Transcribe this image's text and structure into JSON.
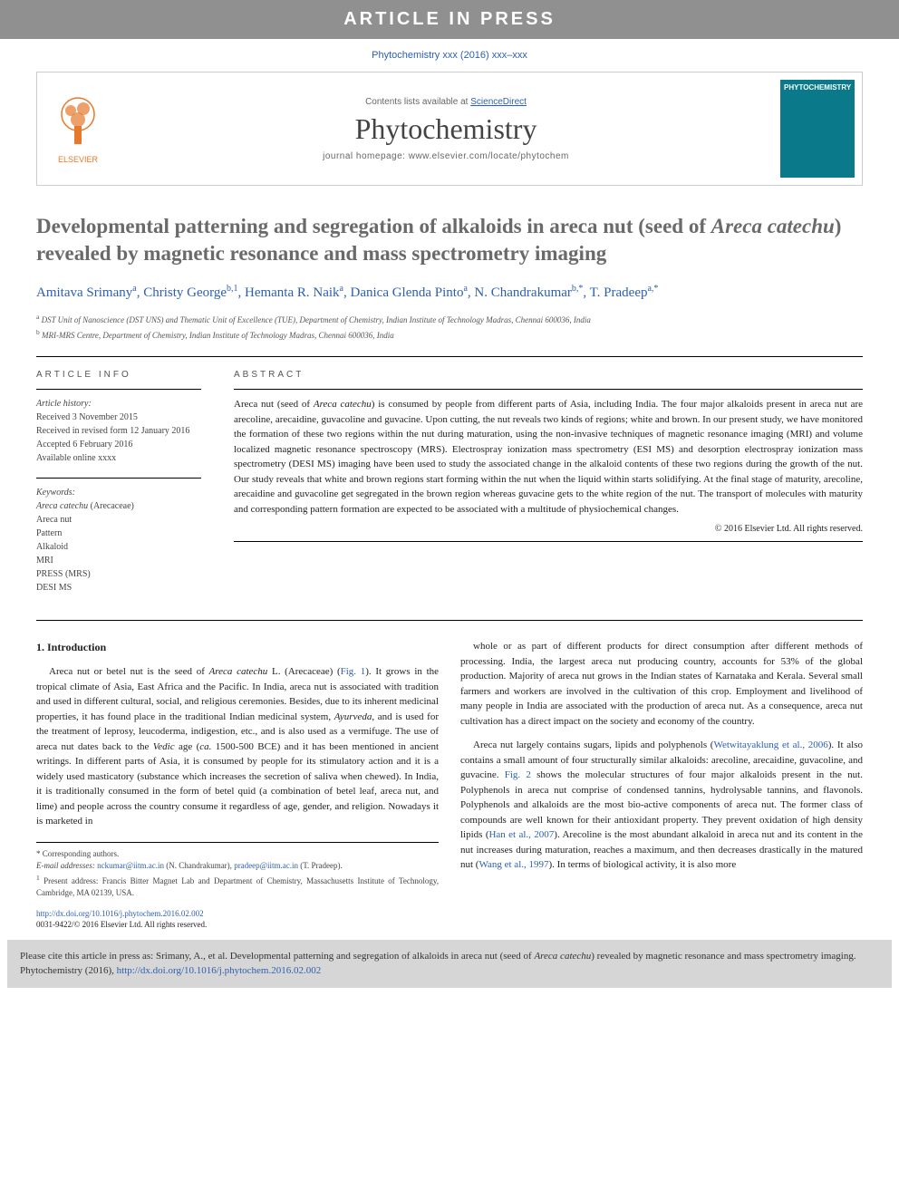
{
  "banner": {
    "text": "ARTICLE IN PRESS"
  },
  "citation_line": "Phytochemistry xxx (2016) xxx–xxx",
  "header": {
    "contents_prefix": "Contents lists available at ",
    "contents_link": "ScienceDirect",
    "journal_name": "Phytochemistry",
    "homepage": "journal homepage: www.elsevier.com/locate/phytochem",
    "elsevier_label": "ELSEVIER",
    "cover_label": "PHYTOCHEMISTRY",
    "colors": {
      "link": "#2d5fb1",
      "elsevier_orange": "#e6792b",
      "cover_bg": "#0a7a8a"
    }
  },
  "title": "Developmental patterning and segregation of alkaloids in areca nut (seed of <em>Areca catechu</em>) revealed by magnetic resonance and mass spectrometry imaging",
  "authors_html": "Amitava Srimany<sup>a</sup>, Christy George<sup>b,1</sup>, Hemanta R. Naik<sup>a</sup>, Danica Glenda Pinto<sup>a</sup>, N. Chandrakumar<sup>b,*</sup>, T. Pradeep<sup>a,*</sup>",
  "affiliations": [
    {
      "sup": "a",
      "text": "DST Unit of Nanoscience (DST UNS) and Thematic Unit of Excellence (TUE), Department of Chemistry, Indian Institute of Technology Madras, Chennai 600036, India"
    },
    {
      "sup": "b",
      "text": "MRI-MRS Centre, Department of Chemistry, Indian Institute of Technology Madras, Chennai 600036, India"
    }
  ],
  "article_info": {
    "heading": "ARTICLE INFO",
    "history_label": "Article history:",
    "history": [
      "Received 3 November 2015",
      "Received in revised form 12 January 2016",
      "Accepted 6 February 2016",
      "Available online xxxx"
    ],
    "keywords_label": "Keywords:",
    "keywords": [
      "<em>Areca catechu</em> (Arecaceae)",
      "Areca nut",
      "Pattern",
      "Alkaloid",
      "MRI",
      "PRESS (MRS)",
      "DESI MS"
    ]
  },
  "abstract": {
    "heading": "ABSTRACT",
    "text": "Areca nut (seed of <em>Areca catechu</em>) is consumed by people from different parts of Asia, including India. The four major alkaloids present in areca nut are arecoline, arecaidine, guvacoline and guvacine. Upon cutting, the nut reveals two kinds of regions; white and brown. In our present study, we have monitored the formation of these two regions within the nut during maturation, using the non-invasive techniques of magnetic resonance imaging (MRI) and volume localized magnetic resonance spectroscopy (MRS). Electrospray ionization mass spectrometry (ESI MS) and desorption electrospray ionization mass spectrometry (DESI MS) imaging have been used to study the associated change in the alkaloid contents of these two regions during the growth of the nut. Our study reveals that white and brown regions start forming within the nut when the liquid within starts solidifying. At the final stage of maturity, arecoline, arecaidine and guvacoline get segregated in the brown region whereas guvacine gets to the white region of the nut. The transport of molecules with maturity and corresponding pattern formation are expected to be associated with a multitude of physiochemical changes.",
    "copyright": "© 2016 Elsevier Ltd. All rights reserved."
  },
  "body": {
    "section_heading": "1. Introduction",
    "col1_p1": "Areca nut or betel nut is the seed of <em>Areca catechu</em> L. (Arecaceae) (<span class='figref'>Fig. 1</span>). It grows in the tropical climate of Asia, East Africa and the Pacific. In India, areca nut is associated with tradition and used in different cultural, social, and religious ceremonies. Besides, due to its inherent medicinal properties, it has found place in the traditional Indian medicinal system, <em>Ayurveda</em>, and is used for the treatment of leprosy, leucoderma, indigestion, etc., and is also used as a vermifuge. The use of areca nut dates back to the <em>Vedic</em> age (<em>ca.</em> 1500-500 BCE) and it has been mentioned in ancient writings. In different parts of Asia, it is consumed by people for its stimulatory action and it is a widely used masticatory (substance which increases the secretion of saliva when chewed). In India, it is traditionally consumed in the form of betel quid (a combination of betel leaf, areca nut, and lime) and people across the country consume it regardless of age, gender, and religion. Nowadays it is marketed in",
    "col2_p1": "whole or as part of different products for direct consumption after different methods of processing. India, the largest areca nut producing country, accounts for 53% of the global production. Majority of areca nut grows in the Indian states of Karnataka and Kerala. Several small farmers and workers are involved in the cultivation of this crop. Employment and livelihood of many people in India are associated with the production of areca nut. As a consequence, areca nut cultivation has a direct impact on the society and economy of the country.",
    "col2_p2": "Areca nut largely contains sugars, lipids and polyphenols (<span class='citeref'>Wetwitayaklung et al., 2006</span>). It also contains a small amount of four structurally similar alkaloids: arecoline, arecaidine, guvacoline, and guvacine. <span class='figref'>Fig. 2</span> shows the molecular structures of four major alkaloids present in the nut. Polyphenols in areca nut comprise of condensed tannins, hydrolysable tannins, and flavonols. Polyphenols and alkaloids are the most bio-active components of areca nut. The former class of compounds are well known for their antioxidant property. They prevent oxidation of high density lipids (<span class='citeref'>Han et al., 2007</span>). Arecoline is the most abundant alkaloid in areca nut and its content in the nut increases during maturation, reaches a maximum, and then decreases drastically in the matured nut (<span class='citeref'>Wang et al., 1997</span>). In terms of biological activity, it is also more"
  },
  "footnotes": {
    "corr": "* Corresponding authors.",
    "email_label": "E-mail addresses:",
    "email1": "nckumar@iitm.ac.in",
    "email1_name": "(N. Chandrakumar),",
    "email2": "pradeep@iitm.ac.in",
    "email2_name": "(T. Pradeep).",
    "note1_sup": "1",
    "note1": "Present address: Francis Bitter Magnet Lab and Department of Chemistry, Massachusetts Institute of Technology, Cambridge, MA 02139, USA."
  },
  "doi": {
    "url": "http://dx.doi.org/10.1016/j.phytochem.2016.02.002",
    "issn": "0031-9422/© 2016 Elsevier Ltd. All rights reserved."
  },
  "cite_box": {
    "text": "Please cite this article in press as: Srimany, A., et al. Developmental patterning and segregation of alkaloids in areca nut (seed of <em>Areca catechu</em>) revealed by magnetic resonance and mass spectrometry imaging. Phytochemistry (2016), ",
    "link": "http://dx.doi.org/10.1016/j.phytochem.2016.02.002"
  }
}
